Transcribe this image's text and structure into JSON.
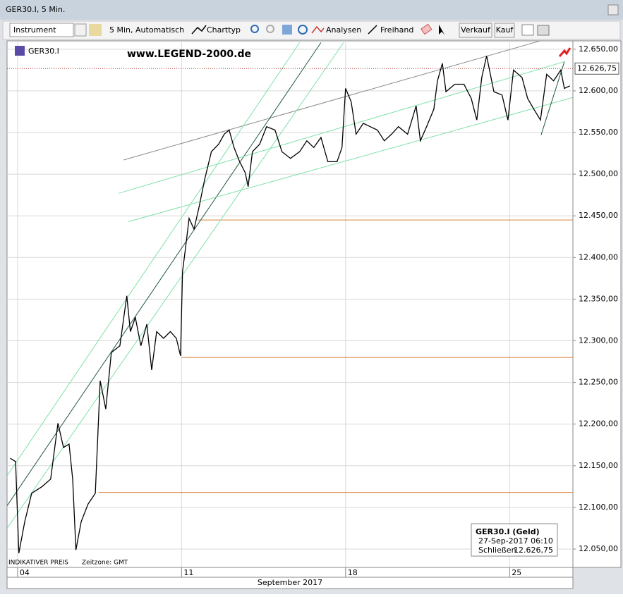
{
  "window": {
    "title": "GER30.I, 5 Min."
  },
  "toolbar": {
    "instrument": "Instrument",
    "interval": "5 Min, Automatisch",
    "chart_type": "Charttyp",
    "analyses": "Analysen",
    "freehand": "Freihand",
    "sell": "Verkauf",
    "buy": "Kauf"
  },
  "chart_data": {
    "type": "line",
    "symbol": "GER30.I",
    "watermark": "www.LEGEND-2000.de",
    "footer": "INDIKATIVER PREIS",
    "timezone": "Zeitzone: GMT",
    "x_label": "September 2017",
    "xlim": [
      -0.32,
      16.93
    ],
    "ylim": [
      12028,
      12660
    ],
    "xticks": [
      {
        "value": 0,
        "label": "04"
      },
      {
        "value": 5,
        "label": "11"
      },
      {
        "value": 10,
        "label": "18"
      },
      {
        "value": 15,
        "label": "25"
      }
    ],
    "yticks": [
      {
        "value": 12050,
        "label": "12.050,00"
      },
      {
        "value": 12100,
        "label": "12.100,00"
      },
      {
        "value": 12150,
        "label": "12.150,00"
      },
      {
        "value": 12200,
        "label": "12.200,00"
      },
      {
        "value": 12250,
        "label": "12.250,00"
      },
      {
        "value": 12300,
        "label": "12.300,00"
      },
      {
        "value": 12350,
        "label": "12.350,00"
      },
      {
        "value": 12400,
        "label": "12.400,00"
      },
      {
        "value": 12450,
        "label": "12.450,00"
      },
      {
        "value": 12500,
        "label": "12.500,00"
      },
      {
        "value": 12550,
        "label": "12.550,00"
      },
      {
        "value": 12600,
        "label": "12.600,00"
      },
      {
        "value": 12650,
        "label": "12.650,00"
      }
    ],
    "grid": true,
    "series": [
      {
        "name": "GER30.I",
        "color": "#000000",
        "x": [
          -0.22,
          -0.06,
          0.04,
          0.22,
          0.43,
          0.75,
          1.01,
          1.23,
          1.4,
          1.57,
          1.68,
          1.78,
          1.94,
          2.15,
          2.37,
          2.52,
          2.69,
          2.86,
          3.12,
          3.33,
          3.44,
          3.59,
          3.76,
          3.94,
          4.09,
          4.24,
          4.45,
          4.66,
          4.84,
          4.97,
          5.03,
          5.1,
          5.23,
          5.38,
          5.53,
          5.7,
          5.91,
          6.13,
          6.3,
          6.45,
          6.6,
          6.77,
          6.94,
          7.03,
          7.16,
          7.38,
          7.59,
          7.85,
          8.06,
          8.32,
          8.6,
          8.82,
          9.03,
          9.25,
          9.46,
          9.74,
          9.89,
          10.0,
          10.17,
          10.32,
          10.54,
          10.75,
          10.97,
          11.18,
          11.4,
          11.61,
          11.89,
          12.15,
          12.28,
          12.47,
          12.69,
          12.8,
          12.95,
          13.06,
          13.33,
          13.61,
          13.83,
          14.0,
          14.15,
          14.3,
          14.52,
          14.77,
          14.95,
          15.12,
          15.38,
          15.55,
          15.74,
          15.94,
          16.13,
          16.34,
          16.56,
          16.67,
          16.84
        ],
        "values": [
          12159,
          12155,
          12045,
          12083,
          12117,
          12125,
          12134,
          12201,
          12172,
          12176,
          12134,
          12049,
          12083,
          12104,
          12117,
          12252,
          12218,
          12286,
          12294,
          12354,
          12311,
          12328,
          12294,
          12320,
          12265,
          12311,
          12303,
          12311,
          12303,
          12282,
          12383,
          12405,
          12447,
          12434,
          12460,
          12493,
          12527,
          12536,
          12548,
          12553,
          12532,
          12515,
          12502,
          12485,
          12527,
          12536,
          12557,
          12553,
          12527,
          12519,
          12527,
          12540,
          12532,
          12544,
          12515,
          12515,
          12532,
          12603,
          12587,
          12548,
          12561,
          12557,
          12553,
          12540,
          12548,
          12557,
          12548,
          12582,
          12540,
          12557,
          12578,
          12612,
          12633,
          12599,
          12608,
          12608,
          12591,
          12565,
          12616,
          12642,
          12599,
          12595,
          12565,
          12625,
          12616,
          12591,
          12578,
          12565,
          12620,
          12612,
          12625,
          12603,
          12606
        ]
      }
    ],
    "last": {
      "value": 12626.75,
      "label": "12.626,75"
    },
    "levels": {
      "color": "#d9823b",
      "y": [
        12445,
        12280,
        12118
      ],
      "x_from": [
        5.48,
        5.01,
        2.47
      ]
    },
    "trendlines": [
      {
        "color": "#8a8a8a",
        "x": [
          3.23,
          16.02
        ],
        "y": [
          12517,
          12661
        ]
      },
      {
        "color": "#1f5a3a",
        "x": [
          -0.32,
          9.25
        ],
        "y": [
          12102,
          12658
        ]
      },
      {
        "color": "#7fe0a8",
        "x": [
          -0.32,
          8.6
        ],
        "y": [
          12138,
          12658
        ]
      },
      {
        "color": "#7fe0a8",
        "x": [
          -0.32,
          9.94
        ],
        "y": [
          12075,
          12658
        ]
      },
      {
        "color": "#7fe0a8",
        "x": [
          3.08,
          16.67
        ],
        "y": [
          12477,
          12635
        ]
      },
      {
        "color": "#7fe0a8",
        "x": [
          3.38,
          16.92
        ],
        "y": [
          12443,
          12592
        ]
      },
      {
        "color": "#1f5a3a",
        "x": [
          15.96,
          16.67
        ],
        "y": [
          12547,
          12635
        ]
      }
    ],
    "info": {
      "title": "GER30.I (Geld)",
      "time": "27-Sep-2017 06:10",
      "close_label": "Schließen"
    }
  }
}
